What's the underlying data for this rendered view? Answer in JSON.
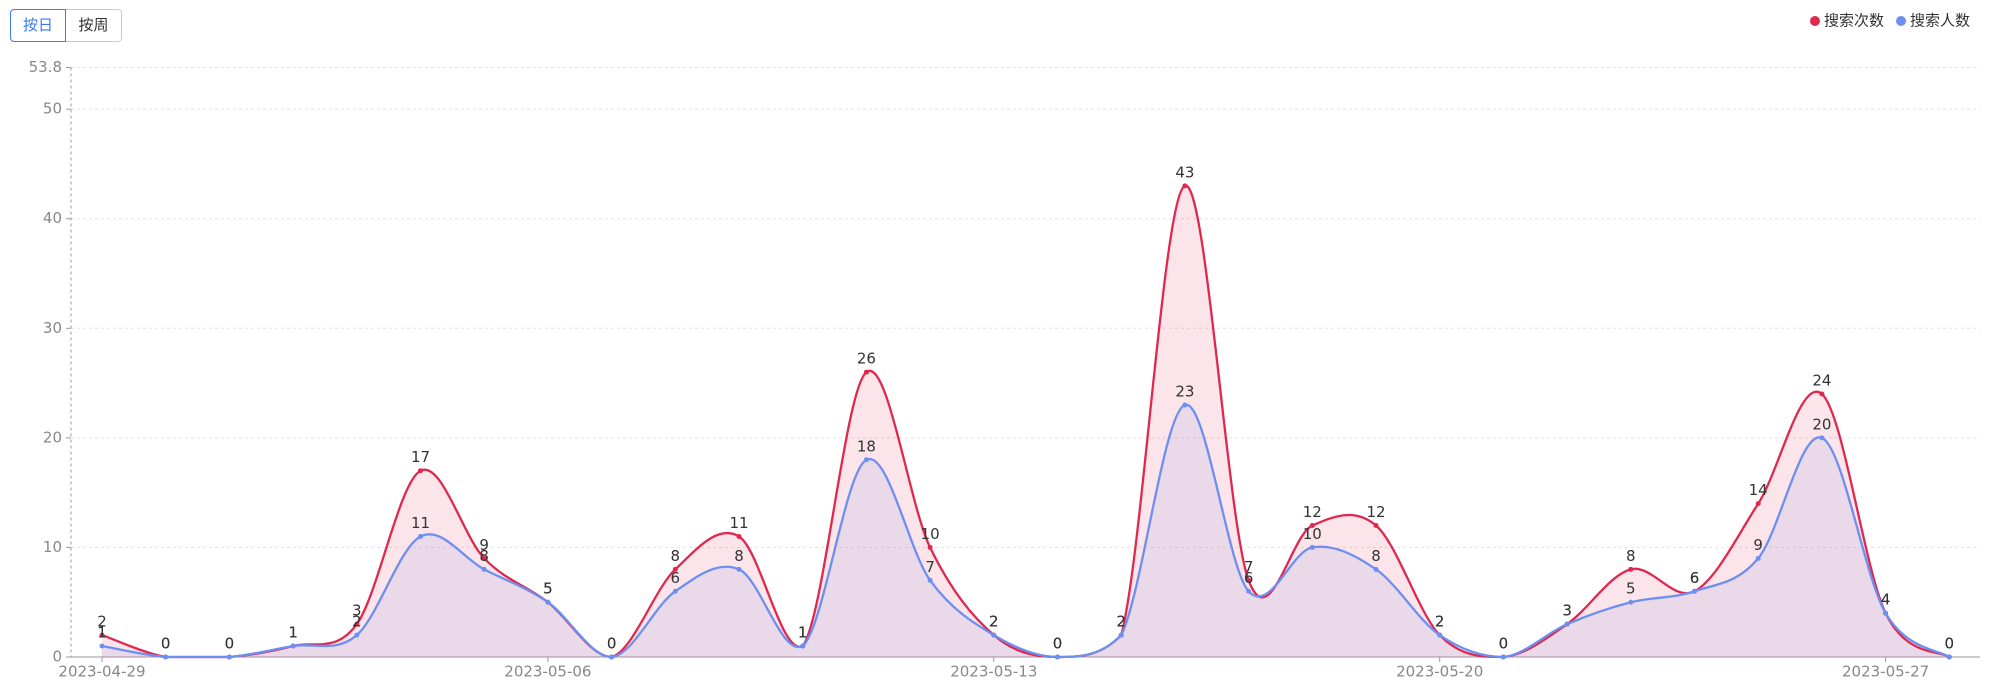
{
  "toolbar": {
    "buttons": [
      "按日",
      "按周"
    ]
  },
  "chart_data": {
    "type": "line",
    "x": [
      "2023-04-29",
      null,
      null,
      null,
      null,
      null,
      null,
      "2023-05-06",
      null,
      null,
      null,
      null,
      null,
      null,
      "2023-05-13",
      null,
      null,
      null,
      null,
      null,
      null,
      "2023-05-20",
      null,
      null,
      null,
      null,
      null,
      null,
      "2023-05-27",
      null
    ],
    "series": [
      {
        "name": "搜索次数",
        "color": "#e0284f",
        "values": [
          2,
          0,
          0,
          1,
          3,
          17,
          9,
          5,
          0,
          8,
          11,
          1,
          26,
          10,
          2,
          0,
          2,
          43,
          7,
          12,
          12,
          2,
          0,
          3,
          8,
          6,
          14,
          24,
          4,
          0
        ]
      },
      {
        "name": "搜索人数",
        "color": "#6e8ff0",
        "values": [
          1,
          0,
          0,
          1,
          2,
          11,
          8,
          5,
          0,
          6,
          8,
          1,
          18,
          7,
          2,
          0,
          2,
          23,
          6,
          10,
          8,
          2,
          0,
          3,
          5,
          6,
          9,
          20,
          4,
          0
        ]
      }
    ],
    "ylim": [
      0,
      53.8
    ],
    "yticks": [
      0,
      10,
      20,
      30,
      40,
      50,
      53.8
    ],
    "grid": true,
    "legend": "top-right"
  }
}
